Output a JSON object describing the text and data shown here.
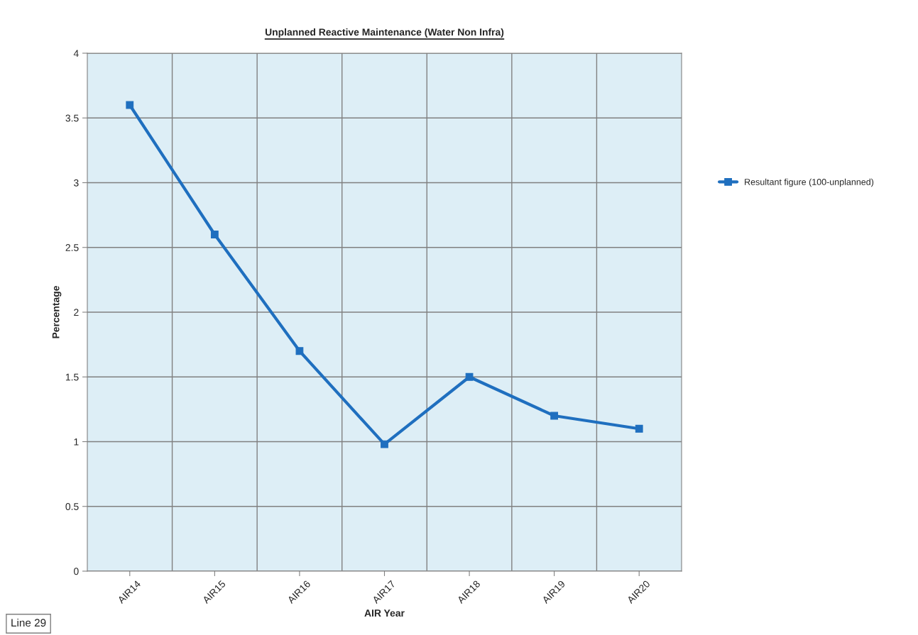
{
  "chart_data": {
    "type": "line",
    "title": "Unplanned Reactive Maintenance (Water Non Infra)",
    "xlabel": "AIR Year",
    "ylabel": "Percentage",
    "categories": [
      "AIR14",
      "AIR15",
      "AIR16",
      "AIR17",
      "AIR18",
      "AIR19",
      "AIR20"
    ],
    "series": [
      {
        "name": "Resultant figure (100-unplanned)",
        "color": "#1f6fbf",
        "values": [
          3.6,
          2.6,
          1.7,
          0.98,
          1.5,
          1.2,
          1.1
        ]
      }
    ],
    "ylim": [
      0,
      4
    ],
    "yticks": [
      0,
      0.5,
      1,
      1.5,
      2,
      2.5,
      3,
      3.5,
      4
    ],
    "grid": true,
    "legend": "right",
    "marker": "square",
    "line_style": "solid",
    "annotations": [
      "Line 29"
    ]
  }
}
